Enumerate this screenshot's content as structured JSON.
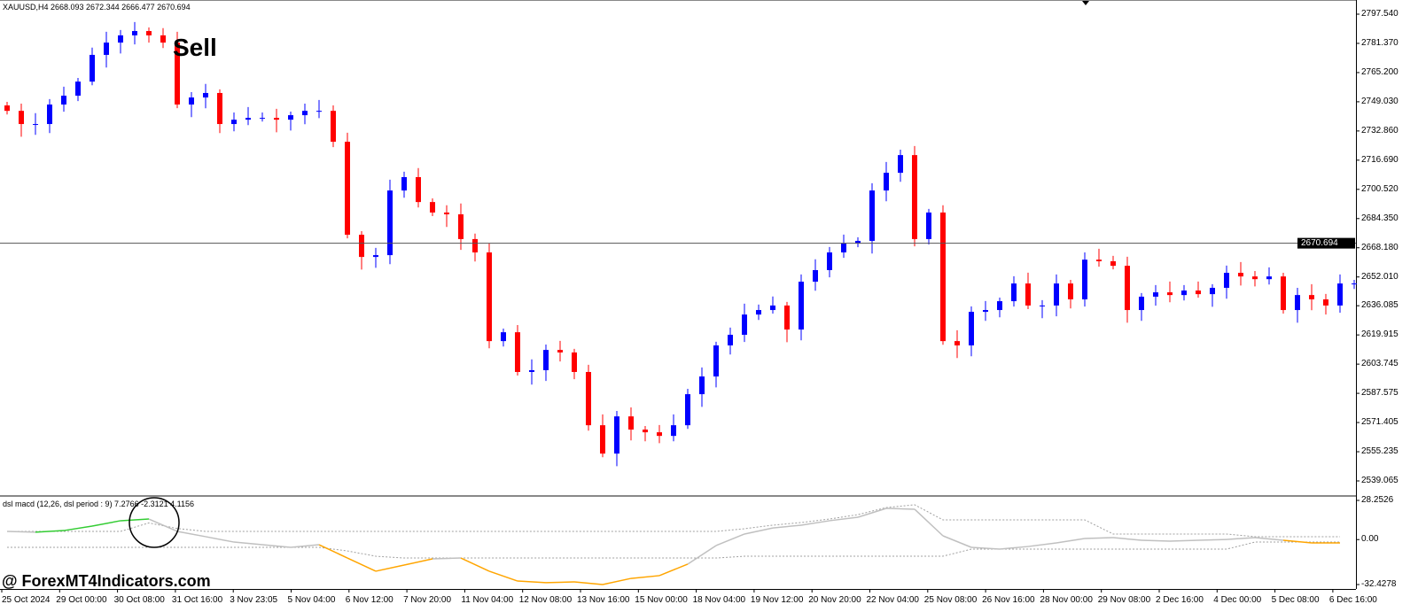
{
  "header": {
    "symbol_info": "XAUUSD,H4  2668.093 2672.344 2666.477 2670.694"
  },
  "annotation": {
    "sell_label": "Sell"
  },
  "watermark": "@ ForexMT4Indicators.com",
  "colors": {
    "bull": "#0000ff",
    "bear": "#ff0000",
    "macd_up": "#33cc33",
    "macd_down": "#ffa500",
    "macd_neutral": "#c0c0c0",
    "level": "#a0a0a0"
  },
  "chart_data": [
    {
      "type": "candlestick",
      "title": "XAUUSD,H4",
      "ylim": [
        2539.065,
        2797.54
      ],
      "y_ticks": [
        "2797.540",
        "2781.370",
        "2765.200",
        "2749.030",
        "2732.860",
        "2716.690",
        "2700.520",
        "2684.350",
        "2668.180",
        "2652.010",
        "2636.085",
        "2619.915",
        "2603.745",
        "2587.575",
        "2571.405",
        "2555.235",
        "2539.065"
      ],
      "current_price": "2670.694",
      "closes": [
        2744.0,
        2736.7,
        2736.7,
        2747.5,
        2752.4,
        2760.2,
        2775.0,
        2781.8,
        2785.8,
        2788.2,
        2785.8,
        2781.8,
        2747.5,
        2751.4,
        2753.9,
        2736.7,
        2739.1,
        2740.1,
        2740.1,
        2739.1,
        2741.6,
        2744.0,
        2744.0,
        2726.9,
        2675.4,
        2663.1,
        2664.1,
        2699.9,
        2707.3,
        2693.5,
        2687.7,
        2686.7,
        2673.0,
        2665.6,
        2616.5,
        2621.4,
        2599.4,
        2600.4,
        2611.6,
        2610.2,
        2599.4,
        2569.9,
        2554.2,
        2574.8,
        2567.5,
        2566.0,
        2564.0,
        2569.9,
        2587.1,
        2596.9,
        2614.1,
        2620.0,
        2631.2,
        2633.7,
        2636.2,
        2622.9,
        2649.4,
        2655.8,
        2665.6,
        2670.5,
        2672.0,
        2699.9,
        2709.7,
        2719.5,
        2673.0,
        2687.7,
        2616.5,
        2614.1,
        2632.7,
        2633.7,
        2638.6,
        2648.4,
        2636.2,
        2636.2,
        2648.4,
        2639.6,
        2661.6,
        2660.7,
        2658.2,
        2633.7,
        2641.1,
        2643.5,
        2642.0,
        2644.5,
        2642.5,
        2646.0,
        2654.3,
        2652.3,
        2650.8,
        2652.3,
        2633.7,
        2642.0,
        2639.6,
        2636.2,
        2648.4,
        2648.4
      ],
      "x_ticks": [
        "25 Oct 2024",
        "29 Oct 00:00",
        "30 Oct 08:00",
        "31 Oct 16:00",
        "3 Nov 23:05",
        "5 Nov 04:00",
        "6 Nov 12:00",
        "7 Nov 20:00",
        "11 Nov 04:00",
        "12 Nov 08:00",
        "13 Nov 16:00",
        "15 Nov 00:00",
        "18 Nov 04:00",
        "19 Nov 12:00",
        "20 Nov 20:00",
        "22 Nov 04:00",
        "25 Nov 08:00",
        "26 Nov 16:00",
        "28 Nov 00:00",
        "29 Nov 08:00",
        "2 Dec 16:00",
        "4 Dec 00:00",
        "5 Dec 08:00",
        "6 Dec 16:00"
      ]
    },
    {
      "type": "line",
      "title": "dsl macd (12,26, dsl period : 9) 7.2766 -2.3121 4.1156",
      "ylim": [
        -32.4278,
        28.2526
      ],
      "y_ticks": [
        "28.2526",
        "0.00",
        "-32.4278"
      ],
      "macd": [
        5.9,
        5.3,
        6.5,
        9.7,
        13.6,
        14.8,
        5.9,
        2.1,
        -1.8,
        -3.7,
        -5.6,
        -3.7,
        -13.3,
        -22.8,
        -18.4,
        -13.9,
        -13.3,
        -22.8,
        -29.9,
        -31.1,
        -30.5,
        -32.4,
        -28.0,
        -26.0,
        -17.7,
        -4.3,
        4.0,
        8.4,
        10.4,
        13.6,
        16.1,
        22.5,
        21.9,
        2.7,
        -5.6,
        -6.9,
        -5.0,
        -2.4,
        0.8,
        1.4,
        -0.5,
        -1.1,
        -0.5,
        0.1,
        1.4,
        -0.5,
        -2.4,
        -2.4
      ],
      "upper_level": [
        5.9,
        5.9,
        5.9,
        5.9,
        5.9,
        12,
        8,
        5.9,
        5.9,
        5.9,
        5.9,
        5.9,
        5.9,
        5.9,
        5.9,
        5.9,
        5.9,
        5.9,
        5.9,
        5.9,
        5.9,
        5.9,
        5.9,
        5.9,
        5.9,
        5.9,
        7.8,
        10.4,
        12.3,
        14.8,
        18.0,
        23.1,
        25.1,
        14.2,
        14.2,
        14.2,
        14.2,
        14.2,
        14.2,
        4.0,
        4.0,
        4.0,
        4.0,
        4.0,
        2.1,
        2.1,
        2.1,
        2.1
      ],
      "lower_level": [
        -5.6,
        -5.6,
        -5.6,
        -5.6,
        -5.6,
        -5.6,
        -5.6,
        -5.6,
        -5.6,
        -5.6,
        -5.6,
        -5.6,
        -8.2,
        -12.0,
        -13.3,
        -13.3,
        -13.3,
        -13.3,
        -13.3,
        -13.3,
        -13.3,
        -13.3,
        -13.3,
        -13.3,
        -13.3,
        -13.3,
        -12.0,
        -12.0,
        -12.0,
        -12.0,
        -12.0,
        -12.0,
        -12.0,
        -12.0,
        -6.9,
        -6.9,
        -6.9,
        -6.9,
        -6.9,
        -6.9,
        -6.9,
        -6.9,
        -6.9,
        -6.9,
        -1.8,
        -1.8,
        -1.8,
        -1.8
      ]
    }
  ]
}
